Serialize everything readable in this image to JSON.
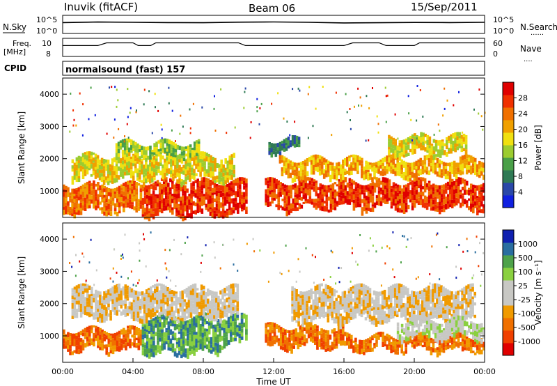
{
  "header": {
    "station": "Inuvik (fitACF)",
    "beam": "Beam 06",
    "date": "15/Sep/2011"
  },
  "noise_panel": {
    "left_label": "N.Sky",
    "right_label": "N.Search",
    "right_marker": "......",
    "yticks_left": [
      "10^5",
      "10^0"
    ],
    "yticks_right": [
      "10^5",
      "10^0"
    ]
  },
  "freq_panel": {
    "left_label_1": "Freq.",
    "left_label_2": "[MHz]",
    "right_label": "Nave",
    "right_marker": "....",
    "yticks_left": [
      "10",
      "8"
    ],
    "yticks_right": [
      "60",
      "0"
    ]
  },
  "cpid_panel": {
    "label": "CPID",
    "text": "normalsound (fast) 157"
  },
  "colors": {
    "power": [
      "#1020e0",
      "#2a48a8",
      "#2f7a55",
      "#4aa048",
      "#9ccc30",
      "#f0e010",
      "#f0a000",
      "#f07000",
      "#f03000",
      "#e00000"
    ],
    "velocity": [
      "#e00000",
      "#f04000",
      "#f07000",
      "#f09a00",
      "#c8c8c4",
      "#c8c8c4",
      "#8ad040",
      "#4ea24a",
      "#2a6ea0",
      "#1020b0"
    ],
    "axis": "#000000"
  },
  "chart_data": [
    {
      "type": "line",
      "name": "noise-panel",
      "xlabel": "",
      "ylabel": "N.Sky",
      "yscale": "log",
      "ylim": [
        1,
        100000
      ],
      "xlim": [
        0,
        24
      ],
      "series": [
        {
          "name": "N.Sky",
          "x": [
            0,
            2,
            4,
            6,
            8,
            10,
            12,
            14,
            16,
            18,
            20,
            22,
            24
          ],
          "values": [
            1000,
            1400,
            1200,
            1000,
            900,
            1300,
            1500,
            1200,
            800,
            900,
            1100,
            1000,
            1200
          ]
        }
      ]
    },
    {
      "type": "line",
      "name": "freq-panel",
      "xlabel": "",
      "ylabel": "Freq. [MHz]",
      "ylim": [
        8,
        10
      ],
      "xlim": [
        0,
        24
      ],
      "series": [
        {
          "name": "Freq",
          "x": [
            0,
            2,
            2.5,
            4,
            4.3,
            5,
            5.3,
            10,
            10.4,
            16,
            16.5,
            18,
            18.4,
            20,
            20.3,
            24
          ],
          "values": [
            9.2,
            9.2,
            9.5,
            9.5,
            9.2,
            9.2,
            9.5,
            9.5,
            9.2,
            9.2,
            9.5,
            9.5,
            9.2,
            9.2,
            9.5,
            9.5
          ]
        }
      ]
    },
    {
      "type": "heatmap",
      "name": "power-panel",
      "xlabel": "",
      "ylabel": "Slant Range [km]",
      "xlim": [
        0,
        24
      ],
      "ylim": [
        180,
        4500
      ],
      "yticks": [
        1000,
        2000,
        3000,
        4000
      ],
      "colorbar": {
        "label": "Power [dB]",
        "ticks": [
          4,
          8,
          12,
          16,
          20,
          24,
          28
        ],
        "range": [
          0,
          30
        ]
      },
      "bands": [
        {
          "x": [
            0,
            4.5
          ],
          "y": [
            400,
            1200
          ],
          "value": 24
        },
        {
          "x": [
            4.5,
            10.5
          ],
          "y": [
            300,
            1300
          ],
          "value": 28
        },
        {
          "x": [
            0.5,
            9.8
          ],
          "y": [
            1400,
            2100
          ],
          "value": 18
        },
        {
          "x": [
            3,
            7.8
          ],
          "y": [
            2100,
            2500
          ],
          "value": 12
        },
        {
          "x": [
            11.5,
            24
          ],
          "y": [
            500,
            1300
          ],
          "value": 26
        },
        {
          "x": [
            12.3,
            24
          ],
          "y": [
            1500,
            2000
          ],
          "value": 20
        },
        {
          "x": [
            18.5,
            23
          ],
          "y": [
            2200,
            2700
          ],
          "value": 16
        },
        {
          "x": [
            11.7,
            13.5
          ],
          "y": [
            2300,
            2600
          ],
          "value": 8
        }
      ]
    },
    {
      "type": "heatmap",
      "name": "velocity-panel",
      "xlabel": "Time UT",
      "ylabel": "Slant Range [km]",
      "xlim": [
        0,
        24
      ],
      "ylim": [
        180,
        4500
      ],
      "xticks": [
        "00:00",
        "04:00",
        "08:00",
        "12:00",
        "16:00",
        "20:00",
        "00:00"
      ],
      "yticks": [
        1000,
        2000,
        3000,
        4000
      ],
      "colorbar": {
        "label": "Velocity [m s⁻¹]",
        "ticks": [
          "1000",
          "500",
          "100",
          "25",
          "-25",
          "-100",
          "-500",
          "-1000"
        ]
      },
      "bands": [
        {
          "x": [
            0,
            4.5
          ],
          "y": [
            600,
            1200
          ],
          "value": -200
        },
        {
          "x": [
            4.5,
            9
          ],
          "y": [
            500,
            1600
          ],
          "value": 120
        },
        {
          "x": [
            9,
            10.5
          ],
          "y": [
            800,
            1600
          ],
          "value": 200
        },
        {
          "x": [
            0.5,
            10
          ],
          "y": [
            1600,
            2500
          ],
          "value": 0
        },
        {
          "x": [
            11.5,
            16
          ],
          "y": [
            700,
            1300
          ],
          "value": -300
        },
        {
          "x": [
            16,
            24
          ],
          "y": [
            600,
            1000
          ],
          "value": -150
        },
        {
          "x": [
            13,
            23.5
          ],
          "y": [
            1500,
            2500
          ],
          "value": 0
        },
        {
          "x": [
            19,
            24
          ],
          "y": [
            1000,
            1500
          ],
          "value": 10
        }
      ]
    }
  ]
}
